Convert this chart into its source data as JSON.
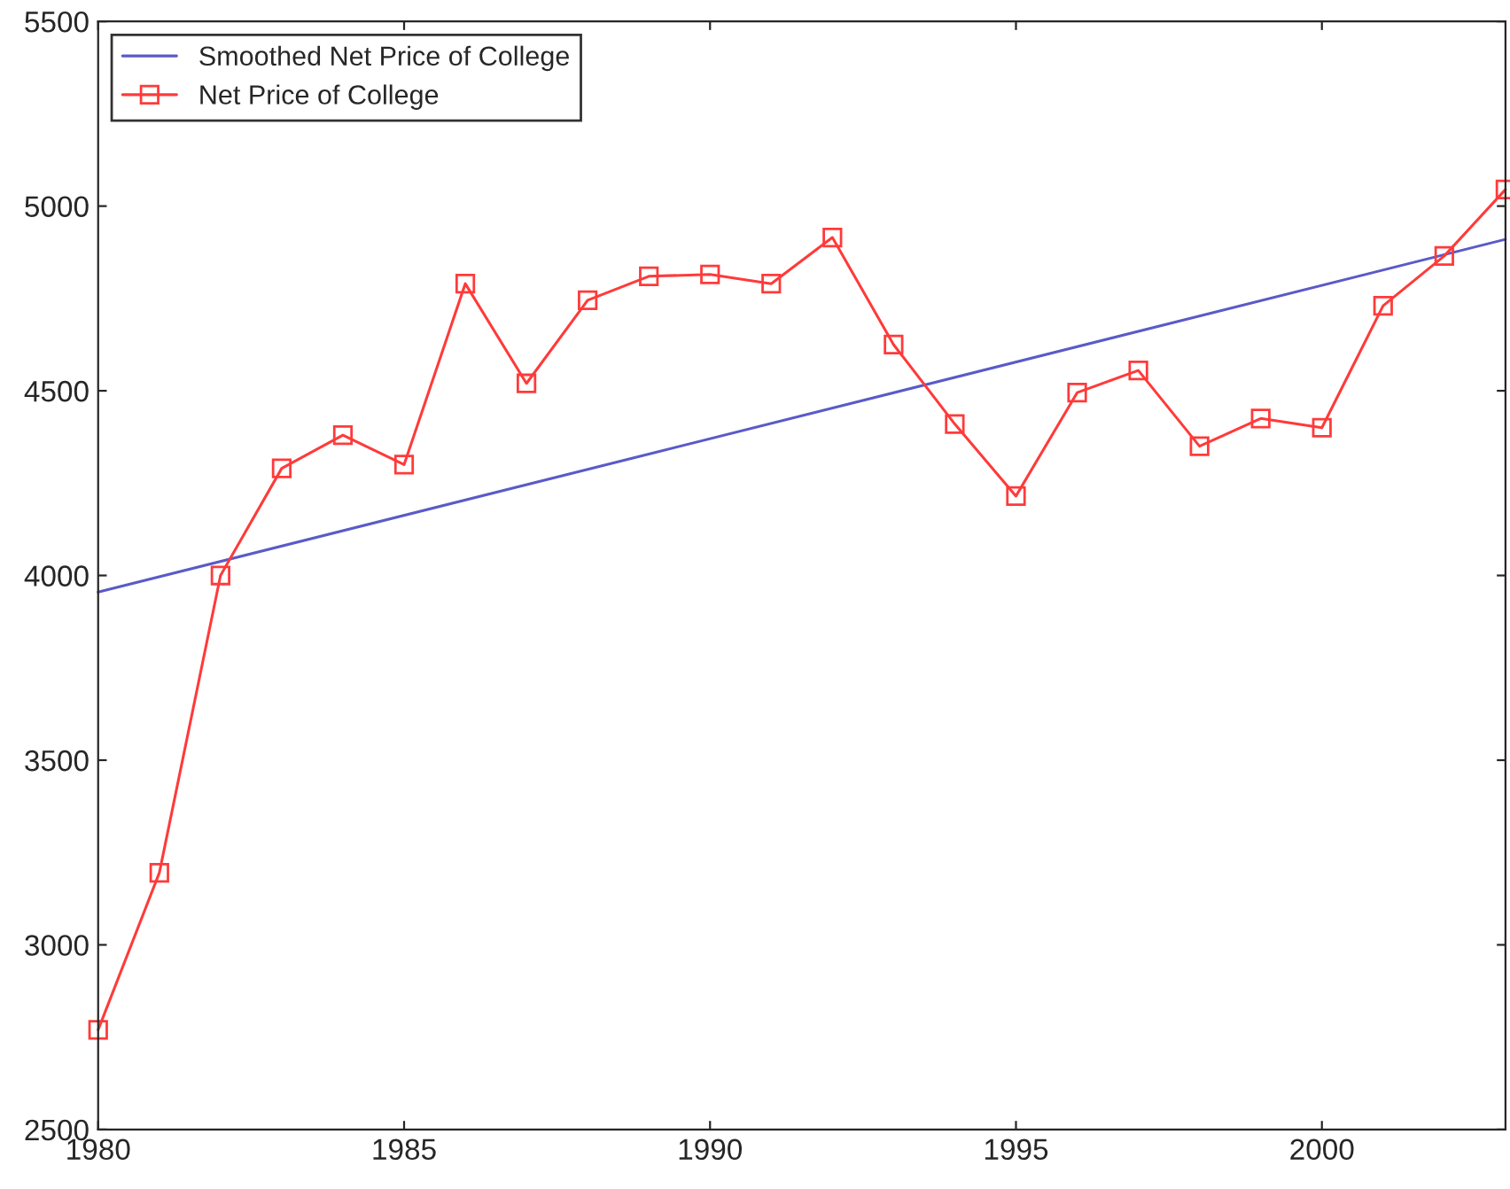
{
  "chart_data": {
    "type": "line",
    "xlim": [
      1980,
      2003
    ],
    "xticks": [
      1980,
      1985,
      1990,
      1995,
      2000
    ],
    "ylim": [
      2500,
      5500
    ],
    "yticks": [
      2500,
      3000,
      3500,
      4000,
      4500,
      5000,
      5500
    ],
    "grid": false,
    "legend": "top left",
    "series": [
      {
        "name": "Smoothed Net Price of College",
        "color": "#5a5ac8",
        "x": [
          1980,
          2003
        ],
        "values": [
          3955,
          4910
        ],
        "marker": "none",
        "line_style": "solid"
      },
      {
        "name": "Net Price of College",
        "color": "#ff3a3a",
        "x": [
          1980,
          1981,
          1982,
          1983,
          1984,
          1985,
          1986,
          1987,
          1988,
          1989,
          1990,
          1991,
          1992,
          1993,
          1994,
          1995,
          1996,
          1997,
          1998,
          1999,
          2000,
          2001,
          2002,
          2003
        ],
        "values": [
          2770,
          3195,
          4000,
          4290,
          4380,
          4300,
          4790,
          4520,
          4745,
          4810,
          4815,
          4790,
          4915,
          4625,
          4410,
          4215,
          4495,
          4555,
          4350,
          4425,
          4400,
          4730,
          4865,
          5045
        ],
        "marker": "square",
        "line_style": "solid"
      }
    ]
  }
}
